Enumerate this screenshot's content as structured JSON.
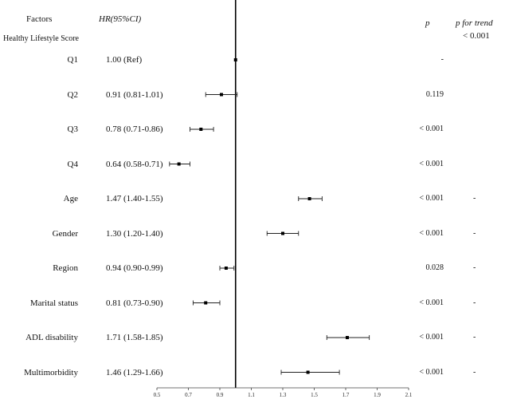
{
  "headers": {
    "factors": "Factors",
    "hr": "HR(95%CI)",
    "p": "p",
    "p_trend": "p for trend",
    "p_trend_value": "< 0.001",
    "group": "Healthy Lifestyle Score"
  },
  "rows": [
    {
      "label": "Q1",
      "hr_text": "1.00 (Ref)",
      "p": "-",
      "trend": ""
    },
    {
      "label": "Q2",
      "hr_text": "0.91 (0.81-1.01)",
      "p": "0.119",
      "trend": ""
    },
    {
      "label": "Q3",
      "hr_text": "0.78 (0.71-0.86)",
      "p": "< 0.001",
      "trend": ""
    },
    {
      "label": "Q4",
      "hr_text": "0.64 (0.58-0.71)",
      "p": "< 0.001",
      "trend": ""
    },
    {
      "label": "Age",
      "hr_text": "1.47 (1.40-1.55)",
      "p": "< 0.001",
      "trend": "-"
    },
    {
      "label": "Gender",
      "hr_text": "1.30 (1.20-1.40)",
      "p": "< 0.001",
      "trend": "-"
    },
    {
      "label": "Region",
      "hr_text": "0.94 (0.90-0.99)",
      "p": "0.028",
      "trend": "-"
    },
    {
      "label": "Marital status",
      "hr_text": "0.81 (0.73-0.90)",
      "p": "< 0.001",
      "trend": "-"
    },
    {
      "label": "ADL disability",
      "hr_text": "1.71 (1.58-1.85)",
      "p": "< 0.001",
      "trend": "-"
    },
    {
      "label": "Multimorbidity",
      "hr_text": "1.46 (1.29-1.66)",
      "p": "< 0.001",
      "trend": "-"
    }
  ],
  "chart_data": {
    "type": "forest",
    "xlim": [
      0.5,
      2.1
    ],
    "xticks": [
      "0.5",
      "0.7",
      "0.9",
      "1.1",
      "1.3",
      "1.5",
      "1.7",
      "1.9",
      "2.1"
    ],
    "reference_line": 1.0,
    "points": [
      {
        "label": "Q1",
        "hr": 1.0,
        "lower": 1.0,
        "upper": 1.0
      },
      {
        "label": "Q2",
        "hr": 0.91,
        "lower": 0.81,
        "upper": 1.01
      },
      {
        "label": "Q3",
        "hr": 0.78,
        "lower": 0.71,
        "upper": 0.86
      },
      {
        "label": "Q4",
        "hr": 0.64,
        "lower": 0.58,
        "upper": 0.71
      },
      {
        "label": "Age",
        "hr": 1.47,
        "lower": 1.4,
        "upper": 1.55
      },
      {
        "label": "Gender",
        "hr": 1.3,
        "lower": 1.2,
        "upper": 1.4
      },
      {
        "label": "Region",
        "hr": 0.94,
        "lower": 0.9,
        "upper": 0.99
      },
      {
        "label": "Marital status",
        "hr": 0.81,
        "lower": 0.73,
        "upper": 0.9
      },
      {
        "label": "ADL disability",
        "hr": 1.71,
        "lower": 1.58,
        "upper": 1.85
      },
      {
        "label": "Multimorbidity",
        "hr": 1.46,
        "lower": 1.29,
        "upper": 1.66
      }
    ]
  }
}
